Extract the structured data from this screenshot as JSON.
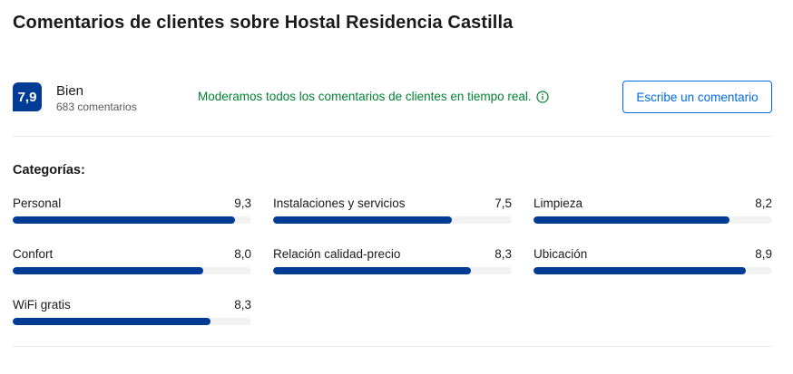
{
  "title": "Comentarios de clientes sobre Hostal Residencia Castilla",
  "summary": {
    "score": "7,9",
    "score_word": "Bien",
    "review_count": "683 comentarios",
    "moderation_note": "Moderamos todos los comentarios de clientes en tiempo real.",
    "write_review_label": "Escribe un comentario"
  },
  "categories_heading": "Categorías:",
  "score_max": 10,
  "categories": [
    {
      "label": "Personal",
      "score": "9,3",
      "value": 9.3
    },
    {
      "label": "Instalaciones y servicios",
      "score": "7,5",
      "value": 7.5
    },
    {
      "label": "Limpieza",
      "score": "8,2",
      "value": 8.2
    },
    {
      "label": "Confort",
      "score": "8,0",
      "value": 8.0
    },
    {
      "label": "Relación calidad-precio",
      "score": "8,3",
      "value": 8.3
    },
    {
      "label": "Ubicación",
      "score": "8,9",
      "value": 8.9
    },
    {
      "label": "WiFi gratis",
      "score": "8,3",
      "value": 8.3
    }
  ],
  "colors": {
    "brand_blue": "#003b95",
    "link_blue": "#006ce4",
    "positive_green": "#008234",
    "track_grey": "#f2f2f2"
  },
  "icons": {
    "info": "info-circle-icon"
  }
}
